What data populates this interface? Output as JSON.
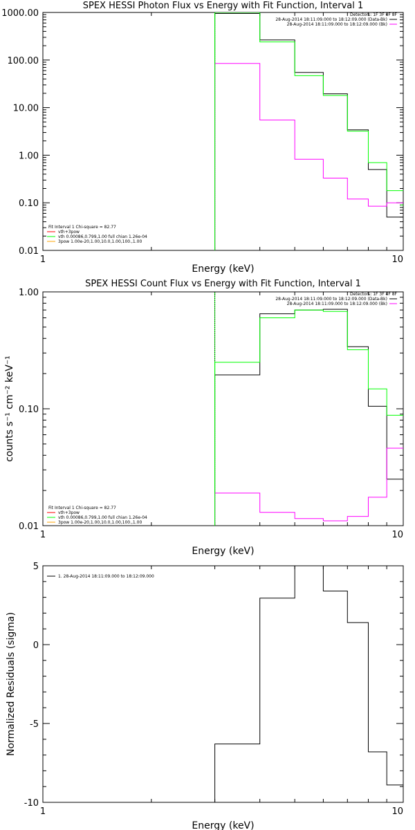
{
  "charts": [
    {
      "title": "SPEX HESSI Photon Flux vs Energy with Fit Function, Interval 1",
      "xlabel": "Energy (keV)",
      "ylabel": "",
      "legend_header": "Detectors: 1F 3F 4F 8F",
      "legend_lines": [
        {
          "text": "28-Aug-2014 18:11:09.000 to 18:12:09.000 (Data-Bk)",
          "color": "#000000"
        },
        {
          "text": "28-Aug-2014 18:11:09.000 to 18:12:09.000 (Bk)",
          "color": "#ff00ff"
        }
      ],
      "fit_text": [
        {
          "text": "Fit Interval 1   Chi-square = 82.77",
          "color": "#000000"
        },
        {
          "text": "vth+3pow",
          "color": "#ff0000"
        },
        {
          "text": "vth 0.00086,0.799,1.00   full chian 1.26e-04",
          "color": "#00ff00"
        },
        {
          "text": "3pow 1.00e-20,1.00,10.0,1.00,100.,1.00",
          "color": "#ffa500"
        }
      ]
    },
    {
      "title": "SPEX HESSI Count Flux vs Energy with Fit Function, Interval 1",
      "xlabel": "Energy (keV)",
      "ylabel": "counts s⁻¹ cm⁻² keV⁻¹",
      "legend_header": "Detectors: 1F 3F 4F 8F",
      "legend_lines": [
        {
          "text": "28-Aug-2014 18:11:09.000 to 18:12:09.000 (Data-Bk)",
          "color": "#000000"
        },
        {
          "text": "28-Aug-2014 18:11:09.000 to 18:12:09.000 (Bk)",
          "color": "#ff00ff"
        }
      ],
      "fit_text": [
        {
          "text": "Fit Interval 1   Chi-square = 82.77",
          "color": "#000000"
        },
        {
          "text": "vth+3pow",
          "color": "#ff0000"
        },
        {
          "text": "vth 0.00086,0.799,1.00   full chian 1.26e-04",
          "color": "#00ff00"
        },
        {
          "text": "3pow 1.00e-20,1.00,10.0,1.00,100.,1.00",
          "color": "#ffa500"
        }
      ]
    },
    {
      "title": "",
      "xlabel": "Energy (keV)",
      "ylabel": "Normalized Residuals (sigma)",
      "legend_lines": [
        {
          "text": "1. 28-Aug-2014 18:11:09.000 to 18:12:09.000",
          "color": "#000000"
        }
      ]
    }
  ],
  "chart_data": [
    {
      "type": "line",
      "step": true,
      "xscale": "log",
      "yscale": "log",
      "xlim": [
        1,
        10
      ],
      "ylim": [
        0.01,
        1000
      ],
      "xticks": [
        {
          "v": 1,
          "label": "1"
        },
        {
          "v": 10,
          "label": "10"
        }
      ],
      "yticks": [
        {
          "v": 0.01,
          "label": "0.01"
        },
        {
          "v": 0.1,
          "label": "0.10"
        },
        {
          "v": 1,
          "label": "1.00"
        },
        {
          "v": 10,
          "label": "10.00"
        },
        {
          "v": 100,
          "label": "100.00"
        },
        {
          "v": 1000,
          "label": "1000.00"
        }
      ],
      "fit_start": 3,
      "edges": [
        3,
        4,
        5,
        6,
        7,
        8,
        9,
        10
      ],
      "series": [
        {
          "name": "Data-Bk",
          "color": "#000000",
          "values": [
            950,
            265,
            55,
            19.5,
            3.4,
            0.5,
            0.05
          ]
        },
        {
          "name": "Bk",
          "color": "#ff00ff",
          "values": [
            85,
            5.5,
            0.82,
            0.33,
            0.12,
            0.085,
            0.1
          ]
        },
        {
          "color": "#00ff00",
          "values": [
            1000,
            240,
            47,
            18,
            3.2,
            0.7,
            0.18
          ]
        }
      ],
      "extra_segments": [
        {
          "color": "#00ff00",
          "x": [
            9.82,
            10
          ],
          "y": 0.09
        }
      ],
      "grid": false,
      "legend": "top-right"
    },
    {
      "type": "line",
      "step": true,
      "xscale": "log",
      "yscale": "log",
      "xlim": [
        1,
        10
      ],
      "ylim": [
        0.01,
        1
      ],
      "xticks": [
        {
          "v": 1,
          "label": "1"
        },
        {
          "v": 10,
          "label": "10"
        }
      ],
      "yticks": [
        {
          "v": 0.01,
          "label": "0.01"
        },
        {
          "v": 0.1,
          "label": "0.10"
        },
        {
          "v": 1,
          "label": "1.00"
        }
      ],
      "fit_start": 3,
      "edges": [
        3,
        4,
        5,
        6,
        7,
        8,
        9,
        10
      ],
      "series": [
        {
          "name": "Data-Bk",
          "color": "#000000",
          "values": [
            0.195,
            0.65,
            0.7,
            0.71,
            0.34,
            0.105,
            0.025
          ]
        },
        {
          "name": "Bk",
          "color": "#ff00ff",
          "values": [
            0.019,
            0.013,
            0.0115,
            0.011,
            0.012,
            0.0175,
            0.046
          ]
        },
        {
          "color": "#00ff00",
          "values": [
            0.25,
            0.6,
            0.7,
            0.68,
            0.32,
            0.148,
            0.088
          ]
        }
      ],
      "grid": false,
      "legend": "top-right"
    },
    {
      "type": "line",
      "step": true,
      "xscale": "log",
      "yscale": "linear",
      "xlim": [
        1,
        10
      ],
      "ylim": [
        -10,
        5
      ],
      "xticks": [
        {
          "v": 1,
          "label": "1"
        },
        {
          "v": 10,
          "label": "10"
        }
      ],
      "yticks": [
        {
          "v": -10,
          "label": "-10"
        },
        {
          "v": -5,
          "label": "-5"
        },
        {
          "v": 0,
          "label": "0"
        },
        {
          "v": 5,
          "label": "5"
        }
      ],
      "edges": [
        3,
        4,
        5,
        6,
        7,
        8,
        9,
        10
      ],
      "series": [
        {
          "name": "1. 28-Aug-2014 18:11:09.000 to 18:12:09.000",
          "color": "#000000",
          "values": [
            -6.3,
            2.95,
            5.0,
            3.4,
            1.4,
            -6.8,
            -8.9
          ]
        }
      ],
      "grid": false,
      "legend": "top-left"
    }
  ]
}
